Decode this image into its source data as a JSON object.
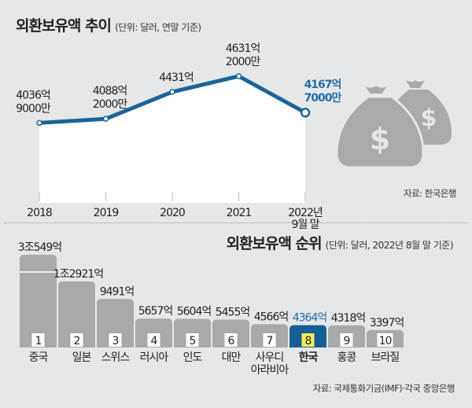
{
  "chart_data": [
    {
      "type": "line",
      "title": "외환보유액 추이",
      "subtitle": "(단위: 달러, 연말 기준)",
      "categories": [
        "2018",
        "2019",
        "2020",
        "2021",
        "2022년 9월 말"
      ],
      "category_lines": [
        [
          "2018"
        ],
        [
          "2019"
        ],
        [
          "2020"
        ],
        [
          "2021"
        ],
        [
          "2022년",
          "9월 말"
        ]
      ],
      "values": [
        403690000000,
        408820000000,
        443100000000,
        463120000000,
        416770000000
      ],
      "data_labels": [
        [
          "4036억",
          "9000만"
        ],
        [
          "4088억",
          "2000만"
        ],
        [
          "4431억"
        ],
        [
          "4631억",
          "2000만"
        ],
        [
          "4167억",
          "7000만"
        ]
      ],
      "highlight_index": 4,
      "source": "자료: 한국은행",
      "grid": false
    },
    {
      "type": "bar",
      "title": "외환보유액 순위",
      "subtitle": "(단위: 달러, 2022년 8월 말 기준)",
      "categories": [
        "중국",
        "일본",
        "스위스",
        "러시아",
        "인도",
        "대만",
        "사우디 아라비아",
        "한국",
        "홍콩",
        "브라질"
      ],
      "category_lines": [
        [
          "중국"
        ],
        [
          "일본"
        ],
        [
          "스위스"
        ],
        [
          "러시아"
        ],
        [
          "인도"
        ],
        [
          "대만"
        ],
        [
          "사우디",
          "아라비아"
        ],
        [
          "한국"
        ],
        [
          "홍콩"
        ],
        [
          "브라질"
        ]
      ],
      "ranks": [
        "1",
        "2",
        "3",
        "4",
        "5",
        "6",
        "7",
        "8",
        "9",
        "10"
      ],
      "values": [
        3054900000000,
        1292100000000,
        949100000000,
        565700000000,
        560400000000,
        545500000000,
        456600000000,
        436400000000,
        431800000000,
        339700000000
      ],
      "data_labels": [
        "3조549억",
        "1조2921억",
        "9491억",
        "5657억",
        "5604억",
        "5455억",
        "4566억",
        "4364억",
        "4318억",
        "3397억"
      ],
      "highlight_index": 7,
      "broken_axis_bar": 0,
      "source": "자료: 국제통화기금(IMF)·각국 중앙은행",
      "grid": false
    }
  ],
  "colors": {
    "line": "#1a6497",
    "highlight_text": "#1f6fa8",
    "bar": "#a8a9ab",
    "highlight_bar": "#155f94",
    "highlight_badge": "#f4ee5a",
    "background": "#e6e7e9",
    "icon": "#a9aaac"
  },
  "icons": {
    "decoration": "money-bag-icon"
  }
}
